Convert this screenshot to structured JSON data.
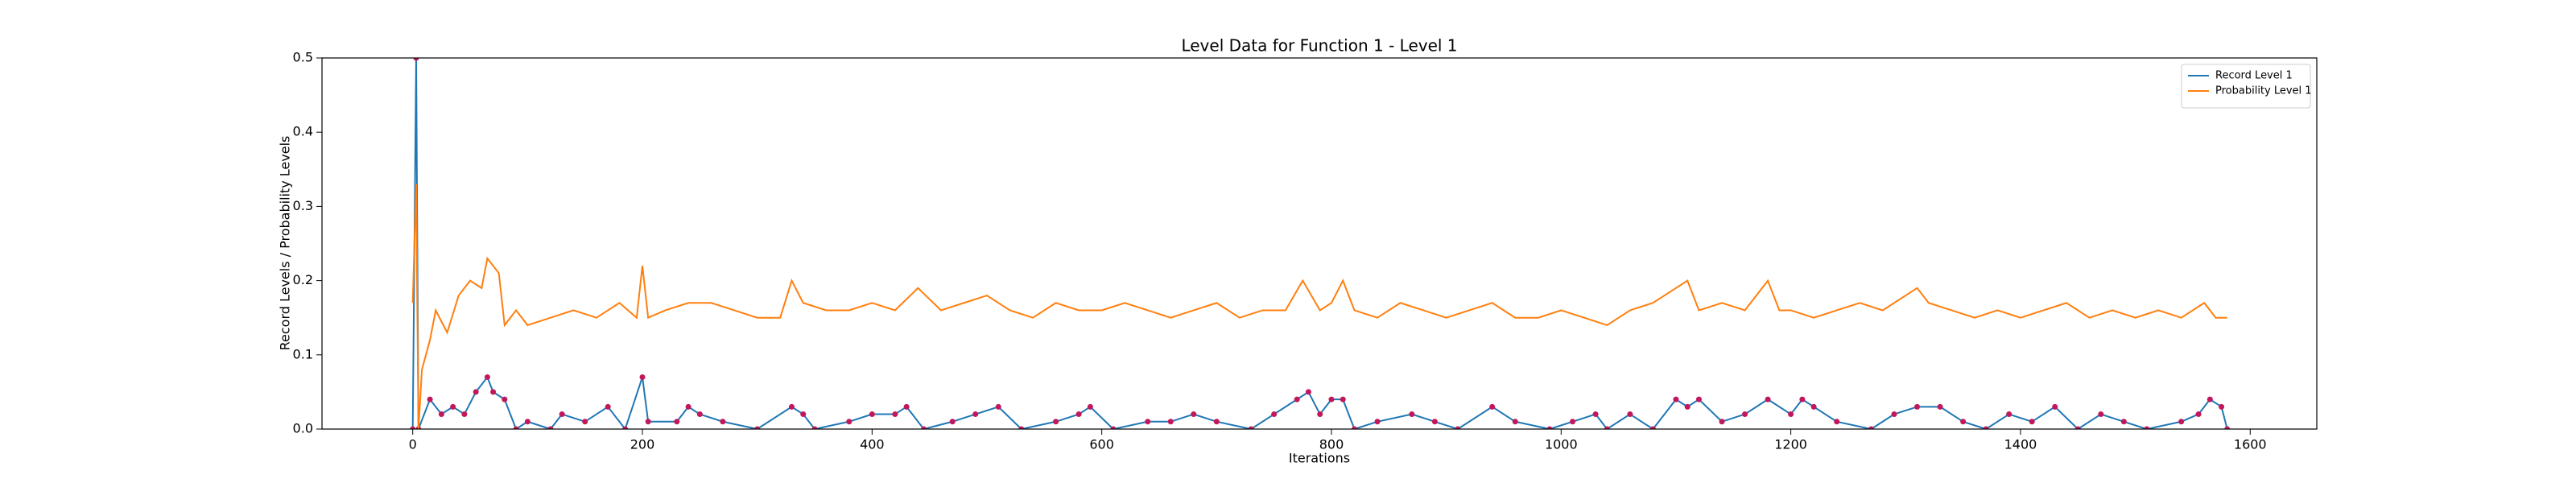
{
  "chart_data": {
    "type": "line",
    "title": "Level Data for Function 1 - Level 1",
    "xlabel": "Iterations",
    "ylabel": "Record Levels / Probability Levels",
    "xlim": [
      -79,
      1658
    ],
    "ylim": [
      0,
      0.5
    ],
    "xticks": [
      0,
      200,
      400,
      600,
      800,
      1000,
      1200,
      1400,
      1600
    ],
    "yticks": [
      {
        "value": 0,
        "label": "0.0"
      },
      0.1,
      0.2,
      0.3,
      0.4,
      0.5
    ],
    "legend": "upper right",
    "series": [
      {
        "name": "Record Level 1",
        "color": "#1f77b4",
        "markers": true,
        "marker_color": "#c2185b",
        "x": [
          0,
          3,
          5,
          15,
          25,
          35,
          45,
          55,
          65,
          70,
          80,
          90,
          100,
          120,
          130,
          150,
          170,
          185,
          200,
          205,
          230,
          240,
          250,
          270,
          300,
          330,
          340,
          350,
          380,
          400,
          420,
          430,
          445,
          470,
          490,
          510,
          530,
          560,
          580,
          590,
          610,
          640,
          660,
          680,
          700,
          730,
          750,
          770,
          780,
          790,
          800,
          810,
          820,
          840,
          870,
          890,
          910,
          940,
          960,
          990,
          1010,
          1030,
          1040,
          1060,
          1080,
          1100,
          1110,
          1120,
          1140,
          1160,
          1180,
          1200,
          1210,
          1220,
          1240,
          1270,
          1290,
          1310,
          1330,
          1350,
          1370,
          1390,
          1410,
          1430,
          1450,
          1470,
          1490,
          1510,
          1540,
          1555,
          1565,
          1575,
          1580
        ],
        "values": [
          0,
          0.5,
          0,
          0.04,
          0.02,
          0.03,
          0.02,
          0.05,
          0.07,
          0.05,
          0.04,
          0,
          0.01,
          0,
          0.02,
          0.01,
          0.03,
          0,
          0.07,
          0.01,
          0.01,
          0.03,
          0.02,
          0.01,
          0,
          0.03,
          0.02,
          0,
          0.01,
          0.02,
          0.02,
          0.03,
          0,
          0.01,
          0.02,
          0.03,
          0,
          0.01,
          0.02,
          0.03,
          0,
          0.01,
          0.01,
          0.02,
          0.01,
          0,
          0.02,
          0.04,
          0.05,
          0.02,
          0.04,
          0.04,
          0,
          0.01,
          0.02,
          0.01,
          0,
          0.03,
          0.01,
          0,
          0.01,
          0.02,
          0,
          0.02,
          0,
          0.04,
          0.03,
          0.04,
          0.01,
          0.02,
          0.04,
          0.02,
          0.04,
          0.03,
          0.01,
          0,
          0.02,
          0.03,
          0.03,
          0.01,
          0,
          0.02,
          0.01,
          0.03,
          0,
          0.02,
          0.01,
          0,
          0.01,
          0.02,
          0.04,
          0.03,
          0
        ]
      },
      {
        "name": "Probability Level 1",
        "color": "#ff7f0e",
        "markers": false,
        "x": [
          0,
          3,
          5,
          8,
          15,
          20,
          30,
          40,
          50,
          60,
          65,
          75,
          80,
          90,
          100,
          120,
          140,
          160,
          180,
          195,
          200,
          205,
          220,
          240,
          260,
          280,
          300,
          320,
          330,
          340,
          360,
          380,
          400,
          420,
          440,
          460,
          480,
          500,
          520,
          540,
          560,
          580,
          600,
          620,
          640,
          660,
          680,
          700,
          720,
          740,
          760,
          775,
          790,
          800,
          810,
          820,
          840,
          860,
          880,
          900,
          920,
          940,
          960,
          980,
          1000,
          1020,
          1040,
          1060,
          1080,
          1100,
          1110,
          1120,
          1140,
          1160,
          1180,
          1190,
          1200,
          1220,
          1240,
          1260,
          1280,
          1300,
          1310,
          1320,
          1340,
          1360,
          1380,
          1400,
          1420,
          1440,
          1460,
          1480,
          1500,
          1520,
          1540,
          1560,
          1570,
          1580
        ],
        "values": [
          0.17,
          0.33,
          0,
          0.08,
          0.12,
          0.16,
          0.13,
          0.18,
          0.2,
          0.19,
          0.23,
          0.21,
          0.14,
          0.16,
          0.14,
          0.15,
          0.16,
          0.15,
          0.17,
          0.15,
          0.22,
          0.15,
          0.16,
          0.17,
          0.17,
          0.16,
          0.15,
          0.15,
          0.2,
          0.17,
          0.16,
          0.16,
          0.17,
          0.16,
          0.19,
          0.16,
          0.17,
          0.18,
          0.16,
          0.15,
          0.17,
          0.16,
          0.16,
          0.17,
          0.16,
          0.15,
          0.16,
          0.17,
          0.15,
          0.16,
          0.16,
          0.2,
          0.16,
          0.17,
          0.2,
          0.16,
          0.15,
          0.17,
          0.16,
          0.15,
          0.16,
          0.17,
          0.15,
          0.15,
          0.16,
          0.15,
          0.14,
          0.16,
          0.17,
          0.19,
          0.2,
          0.16,
          0.17,
          0.16,
          0.2,
          0.16,
          0.16,
          0.15,
          0.16,
          0.17,
          0.16,
          0.18,
          0.19,
          0.17,
          0.16,
          0.15,
          0.16,
          0.15,
          0.16,
          0.17,
          0.15,
          0.16,
          0.15,
          0.16,
          0.15,
          0.17,
          0.15,
          0.15
        ]
      }
    ]
  }
}
